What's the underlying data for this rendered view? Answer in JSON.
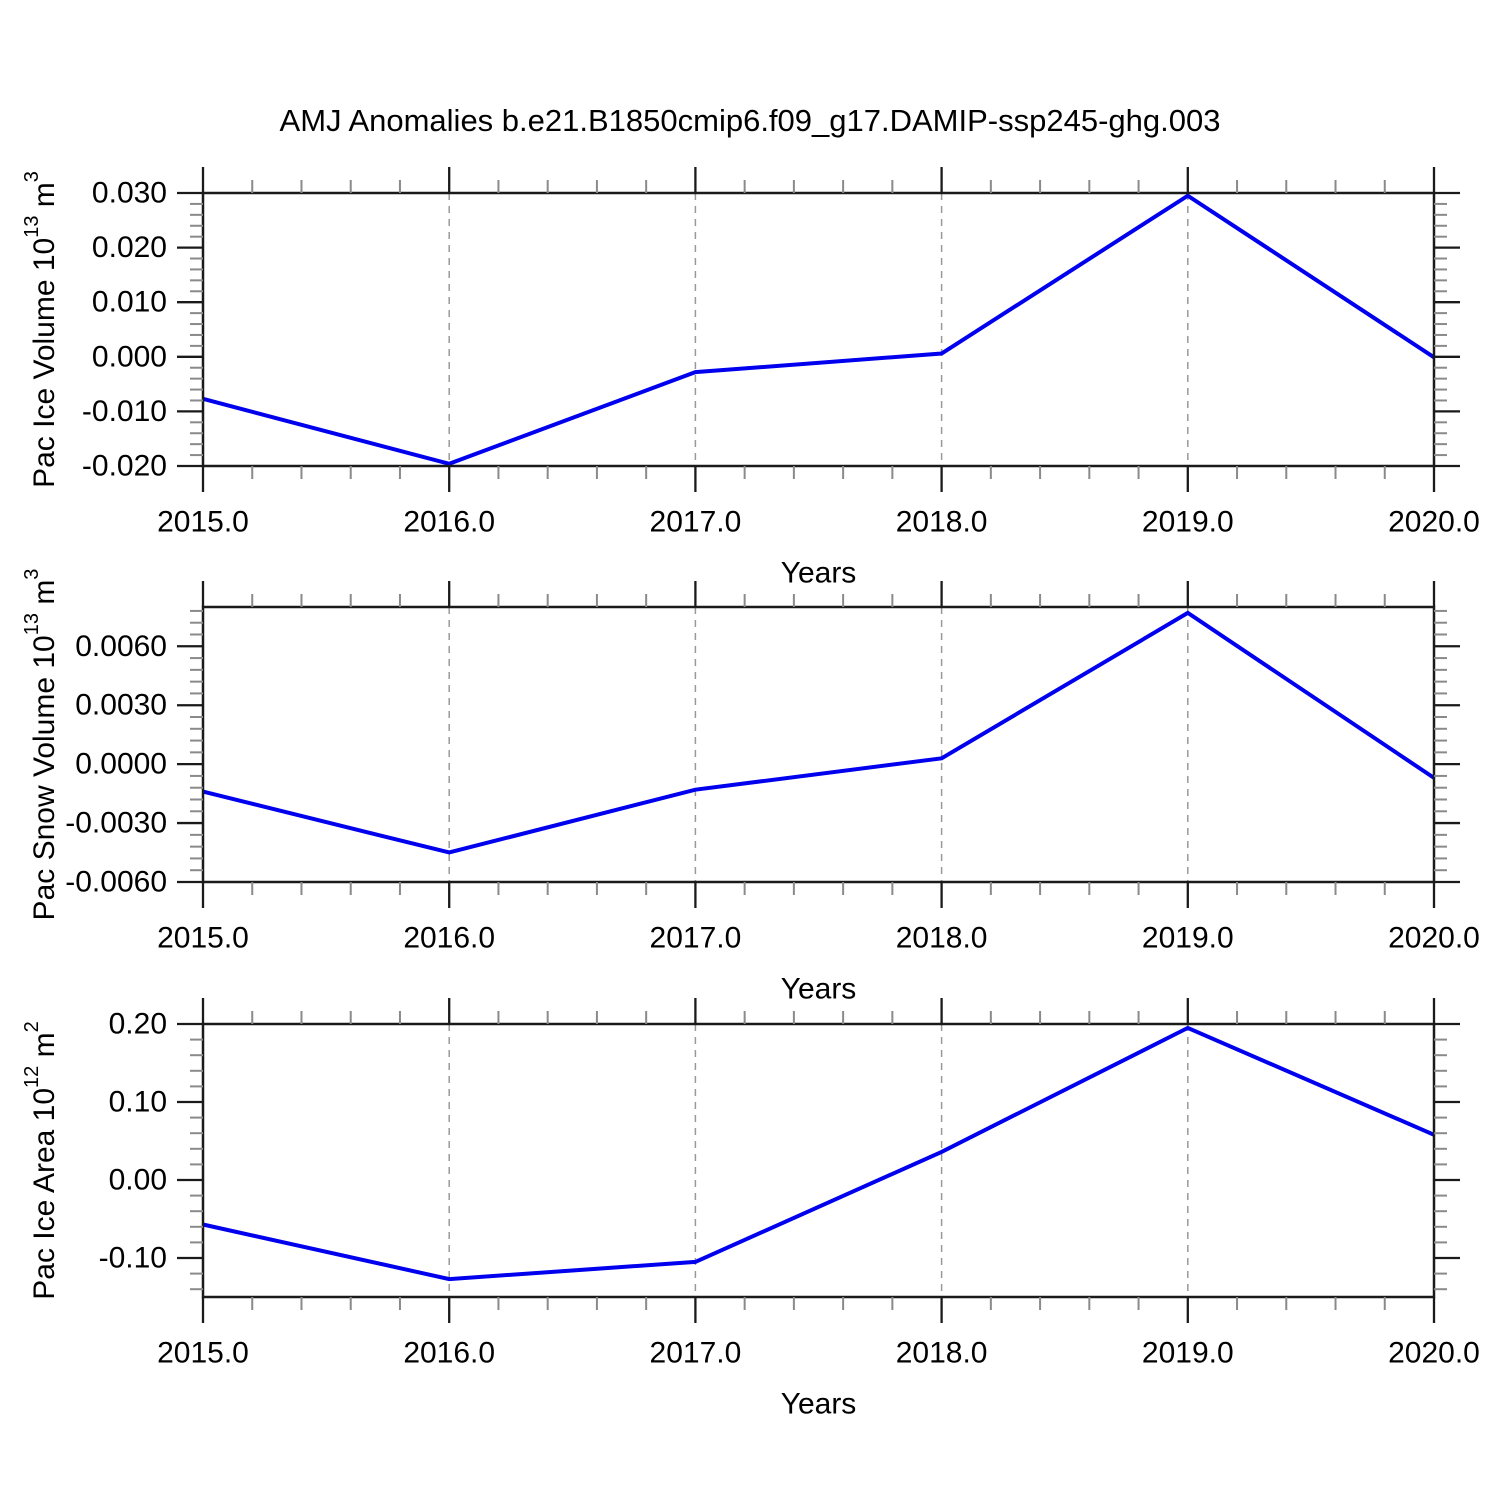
{
  "title": "AMJ Anomalies b.e21.B1850cmip6.f09_g17.DAMIP-ssp245-ghg.003",
  "figure": {
    "background": "#ffffff",
    "line_color": "#0000ee",
    "axis_color": "#1a1a1a",
    "major_tick_color": "#1a1a1a",
    "minor_tick_color": "#8a8a8a",
    "grid_color": "#999999",
    "text_color": "#000000"
  },
  "chart_data": [
    {
      "type": "line",
      "title": "AMJ Anomalies b.e21.B1850cmip6.f09_g17.DAMIP-ssp245-ghg.003",
      "ylabel": "Pac Ice Volume 10^13 m^3",
      "ylabel_parts": [
        {
          "t": "Pac Ice Volume 10",
          "sup": false
        },
        {
          "t": "13",
          "sup": true
        },
        {
          "t": " m",
          "sup": false
        },
        {
          "t": "3",
          "sup": true
        }
      ],
      "x": [
        2015,
        2016,
        2017,
        2018,
        2019,
        2020
      ],
      "values": [
        -0.0077,
        -0.0196,
        -0.0028,
        0.0006,
        0.0295,
        -0.0001
      ],
      "ylim": [
        -0.02,
        0.03
      ],
      "yticks": [
        0.03,
        0.02,
        0.01,
        0.0,
        -0.01,
        -0.02
      ],
      "ytick_labels": [
        "0.030",
        "0.020",
        "0.010",
        "0.000",
        "-0.010",
        "-0.020"
      ],
      "y_minor_step": 0.002,
      "xlim": [
        2015,
        2020
      ],
      "xticks": [
        2015,
        2016,
        2017,
        2018,
        2019,
        2020
      ],
      "xtick_labels": [
        "2015.0",
        "2016.0",
        "2017.0",
        "2018.0",
        "2019.0",
        "2020.0"
      ],
      "x_minor_step": 0.2,
      "xlabel": "Years",
      "grid_x": [
        2016,
        2017,
        2018,
        2019
      ],
      "grid_on": true,
      "legend": "none"
    },
    {
      "type": "line",
      "title": "",
      "ylabel": "Pac Snow Volume 10^13 m^3",
      "ylabel_parts": [
        {
          "t": "Pac Snow Volume 10",
          "sup": false
        },
        {
          "t": "13",
          "sup": true
        },
        {
          "t": " m",
          "sup": false
        },
        {
          "t": "3",
          "sup": true
        }
      ],
      "x": [
        2015,
        2016,
        2017,
        2018,
        2019,
        2020
      ],
      "values": [
        -0.0014,
        -0.0045,
        -0.0013,
        0.0003,
        0.0077,
        -0.0007
      ],
      "ylim": [
        -0.006,
        0.008
      ],
      "yticks": [
        0.006,
        0.003,
        0.0,
        -0.003,
        -0.006
      ],
      "ytick_labels": [
        "0.0060",
        "0.0030",
        "0.0000",
        "-0.0030",
        "-0.0060"
      ],
      "y_minor_step": 0.0006,
      "xlim": [
        2015,
        2020
      ],
      "xticks": [
        2015,
        2016,
        2017,
        2018,
        2019,
        2020
      ],
      "xtick_labels": [
        "2015.0",
        "2016.0",
        "2017.0",
        "2018.0",
        "2019.0",
        "2020.0"
      ],
      "x_minor_step": 0.2,
      "xlabel": "Years",
      "grid_x": [
        2016,
        2017,
        2018,
        2019
      ],
      "grid_on": true,
      "legend": "none"
    },
    {
      "type": "line",
      "title": "",
      "ylabel": "Pac Ice Area 10^12 m^2",
      "ylabel_parts": [
        {
          "t": "Pac Ice Area 10",
          "sup": false
        },
        {
          "t": "12",
          "sup": true
        },
        {
          "t": " m",
          "sup": false
        },
        {
          "t": "2",
          "sup": true
        }
      ],
      "x": [
        2015,
        2016,
        2017,
        2018,
        2019,
        2020
      ],
      "values": [
        -0.057,
        -0.127,
        -0.105,
        0.036,
        0.195,
        0.058
      ],
      "ylim": [
        -0.15,
        0.2
      ],
      "yticks": [
        0.2,
        0.1,
        0.0,
        -0.1
      ],
      "ytick_labels": [
        "0.20",
        "0.10",
        "0.00",
        "-0.10"
      ],
      "y_minor_step": 0.02,
      "xlim": [
        2015,
        2020
      ],
      "xticks": [
        2015,
        2016,
        2017,
        2018,
        2019,
        2020
      ],
      "xtick_labels": [
        "2015.0",
        "2016.0",
        "2017.0",
        "2018.0",
        "2019.0",
        "2020.0"
      ],
      "x_minor_step": 0.2,
      "xlabel": "Years",
      "grid_x": [
        2016,
        2017,
        2018,
        2019
      ],
      "grid_on": true,
      "legend": "none"
    }
  ]
}
